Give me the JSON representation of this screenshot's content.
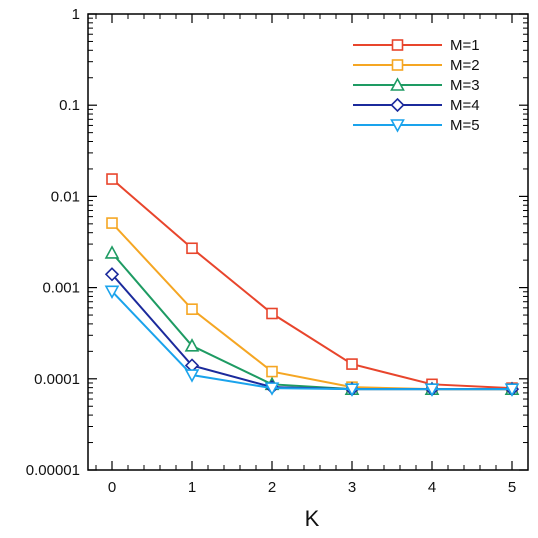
{
  "chart_data": {
    "type": "line",
    "xlabel": "K",
    "ylabel": "",
    "y_scale": "log",
    "xlim": [
      -0.3,
      5.2
    ],
    "ylim": [
      1e-05,
      1
    ],
    "x_ticks": [
      0,
      1,
      2,
      3,
      4,
      5
    ],
    "x_tick_labels": [
      "0",
      "1",
      "2",
      "3",
      "4",
      "5"
    ],
    "y_ticks": [
      1e-05,
      0.0001,
      0.001,
      0.01,
      0.1,
      1
    ],
    "y_tick_labels": [
      "0.00001",
      "0.0001",
      "0.001",
      "0.01",
      "0.1",
      "1"
    ],
    "grid": false,
    "legend_position": "top-right",
    "x": [
      0,
      1,
      2,
      3,
      4,
      5
    ],
    "series": [
      {
        "name": "M=1",
        "color": "#e8452c",
        "marker": "square",
        "values": [
          0.0155,
          0.0027,
          0.00052,
          0.000145,
          8.7e-05,
          7.9e-05
        ]
      },
      {
        "name": "M=2",
        "color": "#f5a623",
        "marker": "square",
        "values": [
          0.0051,
          0.00058,
          0.00012,
          8.1e-05,
          7.7e-05,
          7.7e-05
        ]
      },
      {
        "name": "M=3",
        "color": "#1e9b63",
        "marker": "triangle-up",
        "values": [
          0.0024,
          0.00023,
          8.7e-05,
          7.7e-05,
          7.7e-05,
          7.7e-05
        ]
      },
      {
        "name": "M=4",
        "color": "#1b2a9c",
        "marker": "diamond",
        "values": [
          0.0014,
          0.00014,
          8.1e-05,
          7.7e-05,
          7.7e-05,
          7.7e-05
        ]
      },
      {
        "name": "M=5",
        "color": "#1aa3ec",
        "marker": "triangle-down",
        "values": [
          0.00091,
          0.00011,
          7.9e-05,
          7.7e-05,
          7.7e-05,
          7.7e-05
        ]
      }
    ]
  }
}
